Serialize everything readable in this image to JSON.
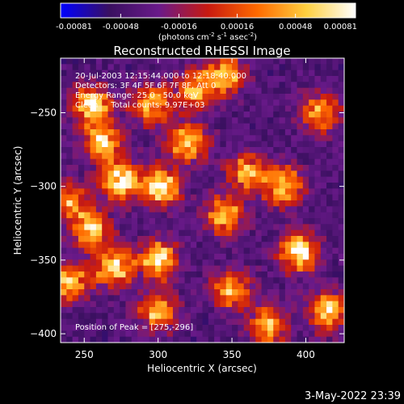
{
  "chart_data": {
    "type": "heatmap",
    "title": "Reconstructed RHESSI Image",
    "xlabel": "Heliocentric X (arcsec)",
    "ylabel": "Heliocentric Y (arcsec)",
    "xlim": [
      234,
      426
    ],
    "ylim": [
      -406,
      -213
    ],
    "x_ticks": [
      250,
      300,
      350,
      400
    ],
    "y_ticks": [
      -250,
      -300,
      -350,
      -400
    ],
    "grid": false,
    "colorbar": {
      "range": [
        -0.00081,
        0.00081
      ],
      "tick_labels": [
        "-0.00081",
        "-0.00048",
        "-0.00016",
        "0.00016",
        "0.00048",
        "0.00081"
      ],
      "unit_parts": [
        "(photons cm",
        "-2",
        " s",
        "-1",
        " asec",
        "-2",
        ")"
      ],
      "colors": [
        "#0000ff",
        "#3a1060",
        "#6a1a8a",
        "#c81a10",
        "#ff6a00",
        "#ffd040",
        "#ffffff"
      ]
    },
    "annotations": [
      "20-Jul-2003 12:15:44.000 to 12:18:40.000",
      "Detectors: 3F 4F 5F 6F 7F 8F, Att 0",
      "Energy Range: 25.0 - 50.0 keV",
      "Clean     Total counts: 9.97E+03"
    ],
    "peak_label": "Position of Peak = [275,-296]",
    "hotspots": [
      {
        "x": 255,
        "y": -245,
        "value": 0.0007
      },
      {
        "x": 262,
        "y": -270,
        "value": 0.00055
      },
      {
        "x": 275,
        "y": -296,
        "value": 0.00081
      },
      {
        "x": 295,
        "y": -245,
        "value": 0.00058
      },
      {
        "x": 302,
        "y": -300,
        "value": 0.0007
      },
      {
        "x": 320,
        "y": -270,
        "value": 0.0006
      },
      {
        "x": 325,
        "y": -235,
        "value": 0.0005
      },
      {
        "x": 345,
        "y": -225,
        "value": 0.0005
      },
      {
        "x": 255,
        "y": -330,
        "value": 0.00055
      },
      {
        "x": 270,
        "y": -355,
        "value": 0.0006
      },
      {
        "x": 300,
        "y": -350,
        "value": 0.00065
      },
      {
        "x": 240,
        "y": -365,
        "value": 0.0005
      },
      {
        "x": 300,
        "y": -385,
        "value": 0.0005
      },
      {
        "x": 395,
        "y": -345,
        "value": 0.00078
      },
      {
        "x": 385,
        "y": -300,
        "value": 0.0006
      },
      {
        "x": 360,
        "y": -290,
        "value": 0.00045
      },
      {
        "x": 345,
        "y": -320,
        "value": 0.00052
      },
      {
        "x": 350,
        "y": -370,
        "value": 0.0005
      },
      {
        "x": 375,
        "y": -395,
        "value": 0.0005
      },
      {
        "x": 415,
        "y": -385,
        "value": 0.0006
      },
      {
        "x": 410,
        "y": -250,
        "value": 0.00042
      },
      {
        "x": 240,
        "y": -310,
        "value": 0.0004
      }
    ]
  },
  "footer": {
    "timestamp": "3-May-2022 23:39"
  }
}
